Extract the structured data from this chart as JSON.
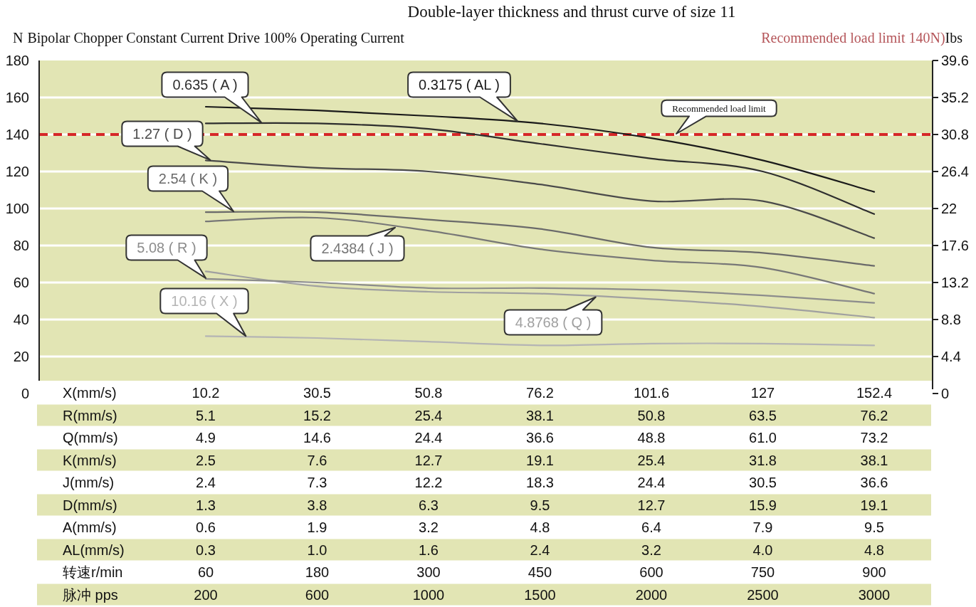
{
  "chart_data": {
    "type": "line",
    "title": "Double-layer thickness and thrust curve of size 11",
    "subtitle": "Bipolar Chopper Constant Current Drive 100% Operating Current",
    "ylabel": "N",
    "y2label": "Ibs",
    "annotations": [
      "Recommended load limit 140N)"
    ],
    "xlabel": "X(mm/s)\nR(mm/s)\nQ(mm/s)\nK(mm/s)\nJ(mm/s)\nD(mm/s)\nA(mm/s)\nAL(mm/s)\n转速r/min\n脉冲 pps",
    "categories": [
      "10.2\n5.1\n4.9\n2.5\n2.4\n1.3\n0.6\n0.3\n60\n200",
      "30.5\n15.2\n14.6\n7.6\n7.3\n3.8\n1.9\n1.0\n180\n600",
      "50.8\n25.4\n24.4\n12.7\n12.2\n6.3\n3.2\n1.6\n300\n1000",
      "76.2\n38.1\n36.6\n19.1\n18.3\n9.5\n4.8\n2.4\n450\n1500",
      "101.6\n50.8\n48.8\n25.4\n24.4\n12.7\n6.4\n3.2\n600\n2000",
      "127\n63.5\n61.0\n31.8\n30.5\n15.9\n7.9\n4.0\n750\n2500",
      "152.4\n76.2\n73.2\n38.1\n36.6\n19.1\n9.5\n4.8\n900\n3000"
    ],
    "ylim": [
      0,
      180
    ],
    "yticks": [
      0,
      20,
      40,
      60,
      80,
      100,
      120,
      140,
      160,
      180
    ],
    "y2lim": [
      0,
      39.6
    ],
    "y2ticks": [
      0,
      4.4,
      8.8,
      13.2,
      17.6,
      22,
      26.4,
      30.8,
      35.2,
      39.6
    ],
    "grid": "y",
    "ref_lines": [
      {
        "axis": "y",
        "value": 140,
        "label": "Recommended load limit",
        "color": "#d62728",
        "line_style": "dashed"
      }
    ],
    "series": [
      {
        "name": "0.3175 ( AL )",
        "color": "#1a1a1a",
        "values": [
          155,
          153,
          150,
          146,
          138,
          126,
          109
        ]
      },
      {
        "name": "0.635 ( A )",
        "color": "#2e2e2e",
        "values": [
          146,
          146,
          143,
          135,
          127,
          120,
          97
        ]
      },
      {
        "name": "1.27 ( D )",
        "color": "#4a4a4a",
        "values": [
          126,
          122,
          120,
          113,
          104,
          104,
          84
        ]
      },
      {
        "name": "2.54 ( K )",
        "color": "#6a6a6a",
        "values": [
          98,
          98,
          94,
          89,
          79,
          76,
          69
        ]
      },
      {
        "name": "2.4384 ( J )",
        "color": "#777777",
        "values": [
          93,
          95,
          88,
          78,
          72,
          68,
          54
        ]
      },
      {
        "name": "4.8768 ( Q )",
        "color": "#a0a0a0",
        "values": [
          66,
          58,
          55,
          54,
          51,
          47,
          41
        ]
      },
      {
        "name": "5.08 ( R )",
        "color": "#8c8c8c",
        "values": [
          62,
          60,
          57,
          57,
          56,
          53,
          49
        ]
      },
      {
        "name": "10.16 ( X )",
        "color": "#b4b4b4",
        "values": [
          31,
          30,
          28,
          26,
          27,
          27,
          26
        ]
      }
    ]
  }
}
